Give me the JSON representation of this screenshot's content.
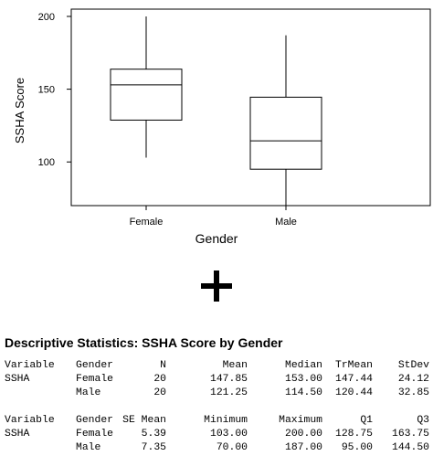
{
  "chart_data": {
    "type": "boxplot",
    "xlabel": "Gender",
    "ylabel": "SSHA Score",
    "ylim": [
      70,
      205
    ],
    "yticks": [
      100,
      150,
      200
    ],
    "categories": [
      "Female",
      "Male"
    ],
    "boxes": [
      {
        "category": "Female",
        "min": 103,
        "q1": 128.75,
        "median": 153,
        "q3": 163.75,
        "max": 200
      },
      {
        "category": "Male",
        "min": 70,
        "q1": 95,
        "median": 114.5,
        "q3": 144.5,
        "max": 187
      }
    ]
  },
  "stats": {
    "title": "Descriptive Statistics: SSHA Score by Gender",
    "table1": {
      "headers": [
        "Variable",
        "Gender",
        "N",
        "Mean",
        "Median",
        "TrMean",
        "StDev"
      ],
      "rows": [
        [
          "SSHA",
          "Female",
          "20",
          "147.85",
          "153.00",
          "147.44",
          "24.12"
        ],
        [
          "",
          "Male",
          "20",
          "121.25",
          "114.50",
          "120.44",
          "32.85"
        ]
      ]
    },
    "table2": {
      "headers": [
        "Variable",
        "Gender",
        "SE Mean",
        "Minimum",
        "Maximum",
        "Q1",
        "Q3"
      ],
      "rows": [
        [
          "SSHA",
          "Female",
          "5.39",
          "103.00",
          "200.00",
          "128.75",
          "163.75"
        ],
        [
          "",
          "Male",
          "7.35",
          "70.00",
          "187.00",
          "95.00",
          "144.50"
        ]
      ]
    }
  }
}
